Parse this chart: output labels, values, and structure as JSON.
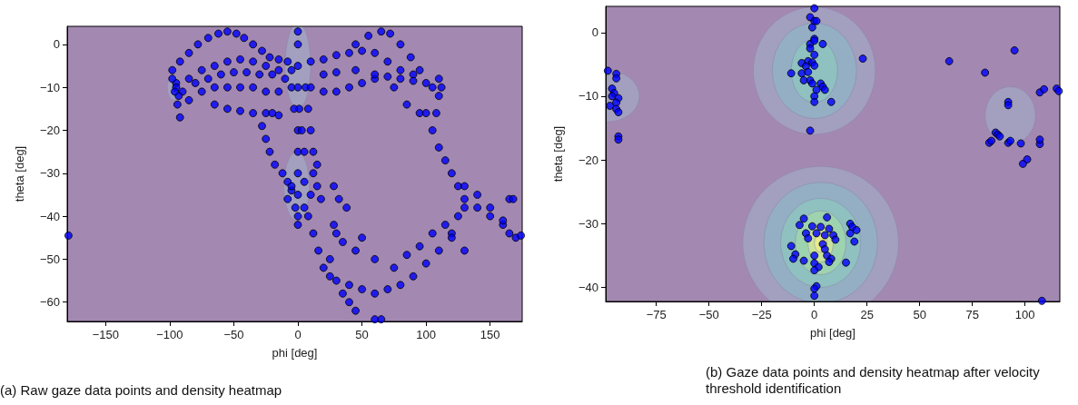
{
  "chart_data": [
    {
      "type": "scatter",
      "xlabel": "phi [deg]",
      "ylabel": "theta [deg]",
      "xlim": [
        -180,
        175
      ],
      "ylim": [
        -64.5,
        4.2
      ],
      "xticks": [
        -150,
        -100,
        -50,
        0,
        50,
        100,
        150
      ],
      "yticks": [
        -60,
        -50,
        -40,
        -30,
        -20,
        -10,
        0
      ],
      "marker": "circle",
      "color": "#0000ff",
      "grid": false,
      "annotations": [
        "(a) Raw gaze data points and density heatmap"
      ],
      "x": [
        -98,
        -92,
        -85,
        -78,
        -70,
        -62,
        -55,
        -48,
        -42,
        -35,
        -28,
        -22,
        -15,
        -8,
        -95,
        -85,
        -75,
        -65,
        -55,
        -45,
        -35,
        -25,
        -15,
        -5,
        -90,
        -80,
        -70,
        -60,
        -50,
        -40,
        -30,
        -20,
        -10,
        -85,
        -75,
        -65,
        -55,
        -45,
        -35,
        -25,
        -15,
        -5,
        -65,
        -55,
        -45,
        -35,
        -25,
        -20,
        -15,
        -98,
        -95,
        -93,
        -94,
        -92,
        -96,
        -28,
        -25,
        -22,
        -18,
        -12,
        -8,
        -5,
        0,
        0,
        0,
        0,
        1,
        0,
        0,
        0,
        0,
        0,
        0,
        -2,
        3,
        5,
        8,
        10,
        12,
        15,
        -3,
        6,
        -5,
        5,
        10,
        15,
        18,
        -8,
        5,
        12,
        8,
        12,
        16,
        20,
        25,
        30,
        40,
        50,
        60,
        70,
        80,
        90,
        100,
        110,
        120,
        125,
        130,
        28,
        35,
        45,
        50,
        60,
        75,
        85,
        95,
        105,
        115,
        120,
        130,
        40,
        45,
        60,
        65,
        35,
        25,
        30,
        38,
        32,
        28,
        10,
        20,
        30,
        40,
        50,
        60,
        70,
        80,
        90,
        100,
        10,
        20,
        30,
        40,
        50,
        60,
        70,
        80,
        90,
        20,
        30,
        45,
        60,
        75,
        85,
        95,
        45,
        55,
        65,
        72,
        80,
        88,
        95,
        105,
        110,
        110,
        108,
        112,
        100,
        105,
        110,
        115,
        120,
        125,
        130,
        140,
        150,
        160,
        165,
        170,
        174,
        130,
        140,
        150,
        160,
        165,
        168,
        -179
      ],
      "values": [
        -6,
        -4,
        -2,
        0,
        1.5,
        2.5,
        3,
        2.5,
        1.5,
        0,
        -1.5,
        -3,
        -3.5,
        -4,
        -9,
        -8,
        -6,
        -5,
        -4,
        -3.5,
        -4,
        -5,
        -6,
        -6,
        -11,
        -9,
        -8,
        -7,
        -6.5,
        -6.5,
        -7,
        -7,
        -8,
        -13,
        -11,
        -10,
        -10,
        -10,
        -10,
        -11,
        -11,
        -10,
        -14,
        -15,
        -15.5,
        -16,
        -16,
        -16,
        -16.5,
        -8,
        -10,
        -12,
        -14,
        -17,
        -11,
        -19,
        -22,
        -25,
        -28,
        -30,
        -32,
        -34,
        3,
        0,
        -5,
        -10,
        -15,
        -20,
        -25,
        -30,
        -35,
        -40,
        -42,
        -38,
        -20,
        -25,
        -15,
        -20,
        -25,
        -28,
        -15,
        -10,
        -33,
        -32,
        -35,
        -33,
        -36,
        -36,
        -38,
        -30,
        -40,
        -44,
        -48,
        -52,
        -54,
        -55,
        -56,
        -57,
        -58,
        -57,
        -56,
        -54,
        -51,
        -48,
        -44,
        -40,
        -38,
        -42,
        -46,
        -48,
        -45,
        -50,
        -52,
        -49,
        -47,
        -44,
        -42,
        -45,
        -48,
        -60,
        -62,
        -64,
        -64,
        -58,
        -50,
        -44,
        -38,
        -36,
        -33,
        -4,
        -3.5,
        -2.5,
        -2,
        -1.5,
        -2,
        -4,
        -6,
        -7,
        -9,
        -10,
        -11,
        -11,
        -10,
        -9,
        -8,
        -7.5,
        -8,
        -8.5,
        -7,
        -6.5,
        -6,
        -7,
        -10,
        -14,
        -16,
        0,
        2,
        3,
        2.5,
        0,
        -3,
        -6,
        -10,
        -8,
        -12,
        -16,
        -10,
        -16,
        -20,
        -24,
        -27,
        -30,
        -33,
        -36,
        -38,
        -40,
        -42,
        -44,
        -45,
        -44.5,
        -33,
        -35,
        -38,
        -41,
        -36,
        -36,
        -44.5
      ]
    },
    {
      "type": "scatter",
      "xlabel": "phi [deg]",
      "ylabel": "theta [deg]",
      "xlim": [
        -99,
        116.5
      ],
      "ylim": [
        -42.2,
        4.1
      ],
      "xticks": [
        -75,
        -50,
        -25,
        0,
        25,
        50,
        75,
        100
      ],
      "yticks": [
        -40,
        -30,
        -20,
        -10,
        0
      ],
      "marker": "circle",
      "color": "#0000ff",
      "grid": false,
      "annotations": [
        "(b) Gaze data points and density heatmap after velocity threshold identification"
      ],
      "x": [
        -98,
        -94,
        -94,
        -96,
        -95,
        -96,
        -93,
        -94,
        -97,
        -94,
        -93,
        -93,
        -93,
        0,
        -2,
        0,
        1,
        -1,
        0,
        -2,
        0,
        4,
        -2,
        0,
        -6,
        -3,
        -1,
        -4,
        0,
        -11,
        -6,
        -3,
        -5,
        -2,
        -1,
        3,
        4,
        1,
        5,
        0,
        0,
        8,
        -2,
        23,
        -5,
        6,
        -7,
        -1,
        3,
        7,
        -4,
        1,
        5,
        9,
        -3,
        10,
        4,
        -11,
        5,
        -9,
        0,
        6,
        8,
        -10,
        -5,
        7,
        0,
        15,
        2,
        0,
        1,
        0,
        0,
        17,
        18,
        20,
        19,
        17,
        64,
        81,
        95,
        107,
        109,
        115,
        116,
        92,
        92,
        86,
        87,
        88,
        83,
        84,
        92,
        93,
        98,
        107,
        107,
        99,
        101,
        108
      ],
      "values": [
        -6,
        -6.5,
        -7.2,
        -8.8,
        -9.5,
        -10,
        -10.3,
        -11,
        -11.5,
        -12,
        -12.5,
        -16.3,
        -16.8,
        3.8,
        2.4,
        1.8,
        1.8,
        0.8,
        -1,
        -1.8,
        -1.3,
        -1.8,
        -2.5,
        -3.5,
        -4.8,
        -4.5,
        -4.7,
        -5.3,
        -5.2,
        -6.4,
        -6.4,
        -6.2,
        -7.5,
        -7.5,
        -8,
        -8,
        -8.5,
        -9,
        -9,
        -10,
        -10.9,
        -10.9,
        -15.4,
        -4.1,
        -29.2,
        -29,
        -30.2,
        -30.4,
        -30.5,
        -30.8,
        -31.5,
        -31.5,
        -31.8,
        -31.8,
        -32.3,
        -32.5,
        -33.2,
        -33.5,
        -34,
        -34.8,
        -35,
        -35,
        -35.5,
        -35.5,
        -35.8,
        -36,
        -36.2,
        -36.1,
        -36.8,
        -37.3,
        -39.8,
        -40.2,
        -41.3,
        -30,
        -30.5,
        -31,
        -32.8,
        -31.5,
        -4.5,
        -6.3,
        -2.8,
        -9.4,
        -8.9,
        -8.8,
        -9.2,
        -10.9,
        -11.4,
        -15.7,
        -16,
        -16.3,
        -17.3,
        -17,
        -17.3,
        -17,
        -17.4,
        -17.5,
        -16.8,
        -20.6,
        -19.9,
        -42.1
      ]
    }
  ]
}
